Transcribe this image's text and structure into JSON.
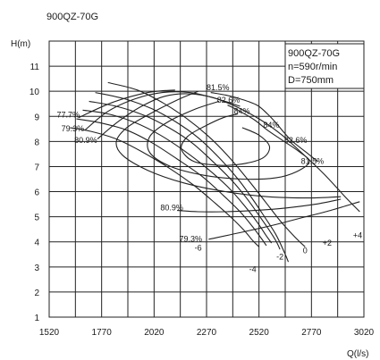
{
  "chart_data": {
    "type": "line",
    "title": "900QZ-70G",
    "xlabel": "Q(l/s)",
    "ylabel": "H(m)",
    "xlim": [
      1520,
      3020
    ],
    "ylim": [
      1,
      12
    ],
    "x_ticks": [
      1520,
      1770,
      2020,
      2270,
      2520,
      2770,
      3020
    ],
    "y_ticks": [
      1,
      2,
      3,
      4,
      5,
      6,
      7,
      8,
      9,
      10,
      11
    ],
    "grid": true,
    "info_box": [
      "900QZ-70G",
      "n=590r/min",
      "D=750mm"
    ],
    "blade_angle_curves": [
      {
        "name": "-6",
        "points": [
          [
            1800,
            10.35
          ],
          [
            1940,
            10.05
          ],
          [
            2060,
            9.55
          ],
          [
            2170,
            8.95
          ],
          [
            2280,
            8.2
          ],
          [
            2380,
            7.35
          ],
          [
            2470,
            6.45
          ],
          [
            2550,
            5.6
          ],
          [
            2620,
            4.85
          ],
          [
            2690,
            4.2
          ],
          [
            2740,
            3.8
          ]
        ]
      },
      {
        "name": "-4",
        "points": [
          [
            1740,
            9.95
          ],
          [
            1880,
            9.7
          ],
          [
            2010,
            9.3
          ],
          [
            2120,
            8.8
          ],
          [
            2230,
            8.15
          ],
          [
            2330,
            7.35
          ],
          [
            2420,
            6.5
          ],
          [
            2490,
            5.7
          ],
          [
            2550,
            4.95
          ],
          [
            2600,
            4.3
          ],
          [
            2640,
            3.6
          ],
          [
            2660,
            3.2
          ]
        ]
      },
      {
        "name": "-2",
        "points": [
          [
            1710,
            9.6
          ],
          [
            1840,
            9.4
          ],
          [
            1970,
            9.05
          ],
          [
            2090,
            8.55
          ],
          [
            2200,
            7.95
          ],
          [
            2300,
            7.2
          ],
          [
            2390,
            6.45
          ],
          [
            2460,
            5.75
          ],
          [
            2520,
            5.05
          ],
          [
            2570,
            4.45
          ],
          [
            2600,
            4.05
          ],
          [
            2620,
            3.7
          ]
        ]
      },
      {
        "name": "0",
        "points": [
          [
            1680,
            9.25
          ],
          [
            1800,
            9.1
          ],
          [
            1930,
            8.75
          ],
          [
            2050,
            8.25
          ],
          [
            2160,
            7.65
          ],
          [
            2270,
            6.95
          ],
          [
            2370,
            6.2
          ],
          [
            2450,
            5.45
          ],
          [
            2510,
            4.8
          ],
          [
            2550,
            4.3
          ],
          [
            2580,
            3.95
          ]
        ]
      },
      {
        "name": "+2",
        "points": [
          [
            1650,
            8.9
          ],
          [
            1760,
            8.75
          ],
          [
            1890,
            8.45
          ],
          [
            2010,
            7.95
          ],
          [
            2130,
            7.3
          ],
          [
            2250,
            6.6
          ],
          [
            2350,
            5.85
          ],
          [
            2430,
            5.2
          ],
          [
            2490,
            4.6
          ],
          [
            2530,
            4.15
          ],
          [
            2555,
            3.85
          ]
        ]
      },
      {
        "name": "+4",
        "points": [
          [
            1620,
            8.55
          ],
          [
            1720,
            8.4
          ],
          [
            1840,
            8.1
          ],
          [
            1960,
            7.6
          ],
          [
            2090,
            6.95
          ],
          [
            2210,
            6.25
          ],
          [
            2310,
            5.55
          ],
          [
            2390,
            4.95
          ],
          [
            2450,
            4.45
          ],
          [
            2490,
            4.05
          ],
          [
            2520,
            3.8
          ]
        ]
      }
    ],
    "efficiency_curves": [
      {
        "name": "77.7%",
        "label_at": [
          1620,
          8.95
        ],
        "points": [
          [
            1660,
            8.95
          ],
          [
            1820,
            9.55
          ],
          [
            1990,
            9.95
          ],
          [
            2120,
            10.05
          ]
        ]
      },
      {
        "name": "79.3%",
        "label_at": [
          1650,
          8.4
        ],
        "points": [
          [
            1690,
            8.45
          ],
          [
            1800,
            9.2
          ],
          [
            1930,
            9.7
          ],
          [
            2060,
            9.95
          ],
          [
            2190,
            9.95
          ],
          [
            2320,
            9.7
          ],
          [
            2430,
            9.4
          ]
        ]
      },
      {
        "name": "79.3%",
        "label_at": [
          2230,
          3.95
        ],
        "points": [
          [
            2280,
            4.1
          ],
          [
            2420,
            4.35
          ],
          [
            2580,
            4.65
          ],
          [
            2720,
            4.95
          ],
          [
            2860,
            5.25
          ],
          [
            3000,
            5.6
          ]
        ]
      },
      {
        "name": "80.9%",
        "label_at": [
          1710,
          7.95
        ],
        "points": [
          [
            1750,
            8.1
          ],
          [
            1850,
            8.8
          ],
          [
            1960,
            9.4
          ],
          [
            2070,
            9.8
          ],
          [
            2180,
            9.9
          ],
          [
            2300,
            9.75
          ],
          [
            2420,
            9.35
          ],
          [
            2530,
            8.85
          ],
          [
            2630,
            8.25
          ],
          [
            2730,
            7.5
          ],
          [
            2830,
            6.7
          ],
          [
            2930,
            5.8
          ],
          [
            3000,
            5.2
          ]
        ]
      },
      {
        "name": "80.9%",
        "label_at": [
          2060,
          5.25
        ],
        "points": [
          [
            2130,
            5.25
          ],
          [
            2230,
            5.2
          ],
          [
            2360,
            5.2
          ],
          [
            2500,
            5.25
          ],
          [
            2650,
            5.35
          ],
          [
            2790,
            5.5
          ],
          [
            2910,
            5.7
          ]
        ]
      },
      {
        "name": "81.5%",
        "label_at": [
          2270,
          10.0
        ],
        "points": [
          [
            2230,
            10.0
          ],
          [
            2130,
            9.65
          ],
          [
            2000,
            9.1
          ],
          [
            1890,
            8.55
          ],
          [
            1840,
            8.0
          ],
          [
            1870,
            7.45
          ],
          [
            1990,
            6.85
          ],
          [
            2160,
            6.35
          ],
          [
            2360,
            6.0
          ],
          [
            2560,
            5.8
          ],
          [
            2760,
            5.75
          ],
          [
            2910,
            5.8
          ]
        ]
      },
      {
        "name": "81.5%",
        "label_at": [
          2800,
          7.1
        ],
        "points": [
          [
            2800,
            7.2
          ],
          [
            2740,
            7.6
          ],
          [
            2680,
            8.0
          ],
          [
            2640,
            8.35
          ],
          [
            2600,
            8.75
          ],
          [
            2560,
            9.1
          ],
          [
            2510,
            9.45
          ],
          [
            2430,
            9.7
          ],
          [
            2360,
            9.85
          ],
          [
            2290,
            9.95
          ]
        ]
      },
      {
        "name": "82.6%",
        "label_at": [
          2320,
          9.55
        ],
        "points": [
          [
            2330,
            9.6
          ],
          [
            2220,
            9.3
          ],
          [
            2090,
            8.8
          ],
          [
            2000,
            8.2
          ],
          [
            2000,
            7.55
          ],
          [
            2100,
            7.0
          ],
          [
            2260,
            6.65
          ],
          [
            2440,
            6.5
          ],
          [
            2600,
            6.55
          ],
          [
            2700,
            6.8
          ],
          [
            2760,
            7.2
          ],
          [
            2710,
            7.6
          ],
          [
            2640,
            8.0
          ],
          [
            2560,
            8.45
          ],
          [
            2500,
            8.85
          ],
          [
            2430,
            9.2
          ],
          [
            2370,
            9.45
          ]
        ]
      },
      {
        "name": "84%",
        "label_at": [
          2410,
          8.55
        ],
        "points": [
          [
            2440,
            8.55
          ],
          [
            2520,
            8.25
          ],
          [
            2570,
            7.8
          ],
          [
            2540,
            7.35
          ],
          [
            2440,
            7.1
          ],
          [
            2330,
            7.05
          ],
          [
            2210,
            7.2
          ],
          [
            2150,
            7.7
          ],
          [
            2180,
            8.2
          ],
          [
            2260,
            8.6
          ],
          [
            2350,
            8.95
          ],
          [
            2420,
            9.1
          ]
        ]
      }
    ],
    "efficiency_labels": [
      {
        "text": "77.7%",
        "x": 1556,
        "y": 8.95
      },
      {
        "text": "79.3%",
        "x": 1578,
        "y": 8.4
      },
      {
        "text": "80.9%",
        "x": 1640,
        "y": 7.95
      },
      {
        "text": "81.5%",
        "x": 2270,
        "y": 10.05
      },
      {
        "text": "82.6%",
        "x": 2320,
        "y": 9.55
      },
      {
        "text": "84%",
        "x": 2400,
        "y": 9.1
      },
      {
        "text": "84%",
        "x": 2540,
        "y": 8.55
      },
      {
        "text": "82.6%",
        "x": 2640,
        "y": 7.95
      },
      {
        "text": "81.5%",
        "x": 2720,
        "y": 7.1
      },
      {
        "text": "80.9%",
        "x": 2050,
        "y": 5.25
      },
      {
        "text": "79.3%",
        "x": 2140,
        "y": 4.0
      }
    ],
    "angle_labels": [
      {
        "text": "-6",
        "x": 2230,
        "y": 3.65
      },
      {
        "text": "-4",
        "x": 2490,
        "y": 2.8
      },
      {
        "text": "-2",
        "x": 2620,
        "y": 3.3
      },
      {
        "text": "0",
        "x": 2740,
        "y": 3.55
      },
      {
        "text": "+2",
        "x": 2845,
        "y": 3.85
      },
      {
        "text": "+4",
        "x": 2990,
        "y": 4.15
      }
    ]
  }
}
